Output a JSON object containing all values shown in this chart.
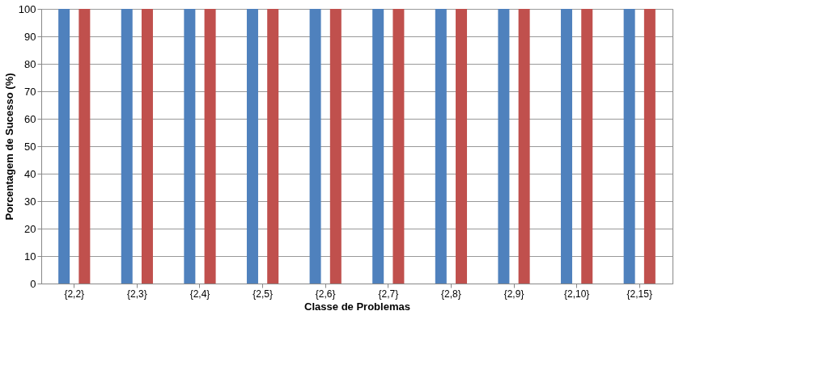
{
  "chart_data": {
    "type": "bar",
    "xlabel": "Classe de Problemas",
    "ylabel": "Porcentagem de Sucesso (%)",
    "categories": [
      "{2,2}",
      "{2,3}",
      "{2,4}",
      "{2,5}",
      "{2,6}",
      "{2,7}",
      "{2,8}",
      "{2,9}",
      "{2,10}",
      "{2,15}"
    ],
    "series": [
      {
        "color": "#4f81bd",
        "values": [
          100,
          100,
          100,
          100,
          100,
          100,
          100,
          100,
          100,
          100
        ]
      },
      {
        "color": "#c0504d",
        "values": [
          100,
          100,
          100,
          100,
          100,
          100,
          100,
          100,
          100,
          100
        ]
      }
    ],
    "ylim": [
      0,
      100
    ],
    "yticks": [
      0,
      10,
      20,
      30,
      40,
      50,
      60,
      70,
      80,
      90,
      100
    ],
    "grid": "y"
  }
}
